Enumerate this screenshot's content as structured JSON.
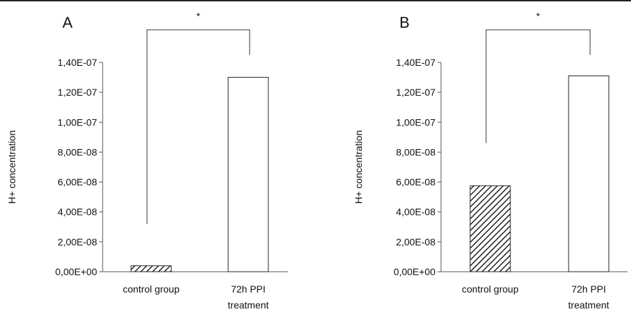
{
  "chart_data": [
    {
      "type": "bar",
      "panel_label": "A",
      "categories": [
        [
          "control group"
        ],
        [
          "72h PPI",
          "treatment"
        ]
      ],
      "values": [
        4e-09,
        1.3e-07
      ],
      "ylabel": "H+ concentration",
      "ylim": [
        0,
        1.4e-07
      ],
      "ticks": [
        0,
        2e-08,
        4e-08,
        6e-08,
        8e-08,
        1e-07,
        1.2e-07,
        1.4e-07
      ],
      "tick_labels": [
        "0,00E+00",
        "2,00E-08",
        "4,00E-08",
        "6,00E-08",
        "8,00E-08",
        "1,00E-07",
        "1,20E-07",
        "1,40E-07"
      ],
      "bar_fills": [
        "hatched",
        "white"
      ],
      "significance": {
        "label": "*",
        "left_end": 3.2e-08,
        "right_end": 1.45e-07
      },
      "grid": false,
      "legend": "none"
    },
    {
      "type": "bar",
      "panel_label": "B",
      "categories": [
        [
          "control group"
        ],
        [
          "72h PPI",
          "treatment"
        ]
      ],
      "values": [
        5.75e-08,
        1.31e-07
      ],
      "ylabel": "H+ concentration",
      "ylim": [
        0,
        1.4e-07
      ],
      "ticks": [
        0,
        2e-08,
        4e-08,
        6e-08,
        8e-08,
        1e-07,
        1.2e-07,
        1.4e-07
      ],
      "tick_labels": [
        "0,00E+00",
        "2,00E-08",
        "4,00E-08",
        "6,00E-08",
        "8,00E-08",
        "1,00E-07",
        "1,20E-07",
        "1,40E-07"
      ],
      "bar_fills": [
        "hatched",
        "white"
      ],
      "significance": {
        "label": "*",
        "left_end": 8.6e-08,
        "right_end": 1.45e-07
      },
      "grid": false,
      "legend": "none"
    }
  ]
}
